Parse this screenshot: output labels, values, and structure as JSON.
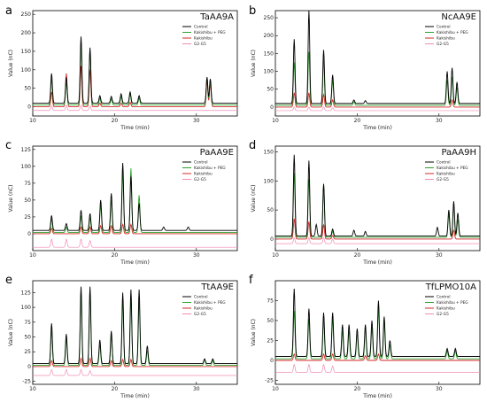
{
  "colors": {
    "control": "#000000",
    "peg": "#2ca02c",
    "kakishibu": "#d62728",
    "g2g5": "#f08cb4"
  },
  "legend": [
    "Control",
    "Kakishibu + PEG",
    "Kakishibu",
    "G2-G5"
  ],
  "chart_data": [
    {
      "letter": "a",
      "title": "TaAA9A",
      "type": "line",
      "xlabel": "Time (min)",
      "ylabel": "Value (nC)",
      "xlim": [
        10,
        35
      ],
      "ylim": [
        -25,
        260
      ],
      "xticks": [
        10,
        20,
        30
      ],
      "yticks": [
        0,
        50,
        100,
        150,
        200,
        250
      ],
      "series": [
        {
          "name": "Control",
          "offset": 10,
          "peaks": [
            [
              12.3,
              80
            ],
            [
              14.1,
              70
            ],
            [
              15.9,
              180
            ],
            [
              17.0,
              150
            ],
            [
              18.2,
              20
            ],
            [
              19.6,
              18
            ],
            [
              20.8,
              25
            ],
            [
              21.9,
              30
            ],
            [
              23.0,
              20
            ],
            [
              31.3,
              70
            ],
            [
              31.7,
              65
            ]
          ]
        },
        {
          "name": "Kakishibu + PEG",
          "offset": 5,
          "peaks": [
            [
              12.3,
              70
            ],
            [
              14.1,
              60
            ],
            [
              15.9,
              170
            ],
            [
              17.0,
              145
            ],
            [
              18.2,
              18
            ],
            [
              19.6,
              16
            ],
            [
              20.8,
              22
            ],
            [
              21.9,
              30
            ],
            [
              23.0,
              18
            ],
            [
              31.3,
              75
            ],
            [
              31.7,
              70
            ]
          ]
        },
        {
          "name": "Kakishibu",
          "offset": 0,
          "peaks": [
            [
              12.3,
              40
            ],
            [
              14.1,
              90
            ],
            [
              15.9,
              110
            ],
            [
              17.0,
              100
            ],
            [
              18.2,
              10
            ],
            [
              20.8,
              10
            ],
            [
              21.9,
              12
            ],
            [
              31.3,
              70
            ],
            [
              31.7,
              65
            ]
          ]
        },
        {
          "name": "G2-G5",
          "offset": -10,
          "peaks": [
            [
              12.3,
              12
            ],
            [
              14.1,
              14
            ],
            [
              15.9,
              14
            ],
            [
              17.0,
              12
            ]
          ]
        }
      ]
    },
    {
      "letter": "b",
      "title": "NcAA9E",
      "type": "line",
      "xlabel": "Time (min)",
      "ylabel": "Value (nC)",
      "xlim": [
        10,
        35
      ],
      "ylim": [
        -25,
        270
      ],
      "xticks": [
        10,
        20,
        30
      ],
      "yticks": [
        0,
        50,
        100,
        150,
        200,
        250
      ],
      "series": [
        {
          "name": "Control",
          "offset": 10,
          "peaks": [
            [
              12.3,
              180
            ],
            [
              14.1,
              260
            ],
            [
              15.9,
              150
            ],
            [
              17.0,
              80
            ],
            [
              19.6,
              10
            ],
            [
              21.0,
              8
            ],
            [
              31.0,
              90
            ],
            [
              31.6,
              100
            ],
            [
              32.2,
              60
            ]
          ]
        },
        {
          "name": "Kakishibu + PEG",
          "offset": 5,
          "peaks": [
            [
              12.3,
              120
            ],
            [
              14.1,
              150
            ],
            [
              15.9,
              130
            ],
            [
              17.0,
              70
            ],
            [
              19.6,
              10
            ],
            [
              31.0,
              70
            ],
            [
              31.6,
              80
            ],
            [
              32.2,
              50
            ]
          ]
        },
        {
          "name": "Kakishibu",
          "offset": 0,
          "peaks": [
            [
              12.3,
              40
            ],
            [
              14.1,
              40
            ],
            [
              15.9,
              35
            ],
            [
              17.0,
              20
            ],
            [
              31.6,
              20
            ]
          ]
        },
        {
          "name": "G2-G5",
          "offset": -10,
          "peaks": [
            [
              12.3,
              10
            ],
            [
              14.1,
              10
            ],
            [
              15.9,
              10
            ],
            [
              17.0,
              8
            ]
          ]
        }
      ]
    },
    {
      "letter": "c",
      "title": "PaAA9E",
      "type": "line",
      "xlabel": "Time (min)",
      "ylabel": "Value (nC)",
      "xlim": [
        10,
        35
      ],
      "ylim": [
        -25,
        130
      ],
      "xticks": [
        10,
        20,
        30
      ],
      "yticks": [
        0,
        25,
        50,
        75,
        100,
        125
      ],
      "series": [
        {
          "name": "Control",
          "offset": 5,
          "peaks": [
            [
              12.3,
              22
            ],
            [
              14.1,
              10
            ],
            [
              15.9,
              30
            ],
            [
              17.0,
              25
            ],
            [
              18.3,
              45
            ],
            [
              19.6,
              55
            ],
            [
              21.0,
              100
            ],
            [
              22.0,
              80
            ],
            [
              23.0,
              40
            ],
            [
              26.0,
              5
            ],
            [
              29.0,
              5
            ]
          ]
        },
        {
          "name": "Kakishibu + PEG",
          "offset": 2,
          "peaks": [
            [
              12.3,
              20
            ],
            [
              14.1,
              8
            ],
            [
              15.9,
              25
            ],
            [
              17.0,
              22
            ],
            [
              18.3,
              40
            ],
            [
              19.6,
              48
            ],
            [
              21.0,
              90
            ],
            [
              22.0,
              95
            ],
            [
              23.0,
              55
            ]
          ]
        },
        {
          "name": "Kakishibu",
          "offset": 0,
          "peaks": [
            [
              12.3,
              8
            ],
            [
              15.9,
              10
            ],
            [
              17.0,
              10
            ],
            [
              18.3,
              12
            ],
            [
              19.6,
              12
            ],
            [
              21.0,
              14
            ],
            [
              22.0,
              14
            ]
          ]
        },
        {
          "name": "G2-G5",
          "offset": -20,
          "peaks": [
            [
              12.3,
              12
            ],
            [
              14.1,
              12
            ],
            [
              15.9,
              12
            ],
            [
              17.0,
              10
            ]
          ]
        }
      ]
    },
    {
      "letter": "d",
      "title": "PaAA9H",
      "type": "line",
      "xlabel": "Time (min)",
      "ylabel": "Value (nC)",
      "xlim": [
        10,
        35
      ],
      "ylim": [
        -20,
        160
      ],
      "xticks": [
        10,
        20,
        30
      ],
      "yticks": [
        0,
        50,
        100,
        150
      ],
      "series": [
        {
          "name": "Control",
          "offset": 5,
          "peaks": [
            [
              12.3,
              140
            ],
            [
              14.1,
              130
            ],
            [
              15.0,
              20
            ],
            [
              15.9,
              90
            ],
            [
              17.0,
              12
            ],
            [
              19.6,
              10
            ],
            [
              21.0,
              8
            ],
            [
              29.8,
              15
            ],
            [
              31.2,
              45
            ],
            [
              31.8,
              60
            ],
            [
              32.3,
              40
            ]
          ]
        },
        {
          "name": "Kakishibu + PEG",
          "offset": 3,
          "peaks": [
            [
              12.3,
              110
            ],
            [
              14.1,
              100
            ],
            [
              15.9,
              92
            ],
            [
              17.0,
              10
            ],
            [
              31.2,
              40
            ],
            [
              31.8,
              55
            ],
            [
              32.3,
              30
            ]
          ]
        },
        {
          "name": "Kakishibu",
          "offset": 0,
          "peaks": [
            [
              12.3,
              35
            ],
            [
              14.1,
              30
            ],
            [
              15.9,
              25
            ],
            [
              17.0,
              6
            ],
            [
              31.8,
              15
            ]
          ]
        },
        {
          "name": "G2-G5",
          "offset": -8,
          "peaks": [
            [
              12.3,
              10
            ],
            [
              14.1,
              10
            ],
            [
              15.9,
              10
            ],
            [
              17.0,
              8
            ]
          ]
        }
      ]
    },
    {
      "letter": "e",
      "title": "TtAA9E",
      "type": "line",
      "xlabel": "Time (min)",
      "ylabel": "Value (nC)",
      "xlim": [
        10,
        35
      ],
      "ylim": [
        -30,
        145
      ],
      "xticks": [
        10,
        20,
        30
      ],
      "yticks": [
        -25,
        0,
        25,
        50,
        75,
        100,
        125
      ],
      "series": [
        {
          "name": "Control",
          "offset": 5,
          "peaks": [
            [
              12.3,
              68
            ],
            [
              14.1,
              50
            ],
            [
              15.9,
              130
            ],
            [
              17.0,
              130
            ],
            [
              18.2,
              40
            ],
            [
              19.6,
              55
            ],
            [
              21.0,
              120
            ],
            [
              22.0,
              125
            ],
            [
              23.0,
              125
            ],
            [
              24.0,
              30
            ],
            [
              31.0,
              8
            ],
            [
              32.0,
              8
            ]
          ]
        },
        {
          "name": "Kakishibu + PEG",
          "offset": 2,
          "peaks": [
            [
              12.3,
              60
            ],
            [
              14.1,
              45
            ],
            [
              15.9,
              120
            ],
            [
              17.0,
              120
            ],
            [
              18.2,
              35
            ],
            [
              19.6,
              50
            ],
            [
              21.0,
              110
            ],
            [
              22.0,
              115
            ],
            [
              23.0,
              110
            ],
            [
              24.0,
              25
            ],
            [
              31.0,
              10
            ],
            [
              32.0,
              8
            ]
          ]
        },
        {
          "name": "Kakishibu",
          "offset": 0,
          "peaks": [
            [
              12.3,
              10
            ],
            [
              15.9,
              14
            ],
            [
              17.0,
              14
            ],
            [
              19.6,
              10
            ],
            [
              21.0,
              12
            ],
            [
              22.0,
              12
            ]
          ]
        },
        {
          "name": "G2-G5",
          "offset": -15,
          "peaks": [
            [
              12.3,
              10
            ],
            [
              14.1,
              10
            ],
            [
              15.9,
              10
            ],
            [
              17.0,
              8
            ]
          ]
        }
      ]
    },
    {
      "letter": "f",
      "title": "TfLPMO10A",
      "type": "line",
      "xlabel": "Time (min)",
      "ylabel": "Value (nC)",
      "xlim": [
        10,
        35
      ],
      "ylim": [
        -30,
        100
      ],
      "xticks": [
        10,
        20,
        30
      ],
      "yticks": [
        -25,
        0,
        25,
        50,
        75
      ],
      "series": [
        {
          "name": "Control",
          "offset": 5,
          "peaks": [
            [
              12.3,
              85
            ],
            [
              14.1,
              60
            ],
            [
              15.9,
              55
            ],
            [
              17.0,
              55
            ],
            [
              18.2,
              40
            ],
            [
              19.0,
              40
            ],
            [
              20.0,
              35
            ],
            [
              21.0,
              40
            ],
            [
              21.8,
              45
            ],
            [
              22.6,
              70
            ],
            [
              23.3,
              50
            ],
            [
              24.0,
              20
            ],
            [
              31.0,
              10
            ],
            [
              32.0,
              10
            ]
          ]
        },
        {
          "name": "Kakishibu + PEG",
          "offset": 2,
          "peaks": [
            [
              12.3,
              60
            ],
            [
              14.1,
              50
            ],
            [
              15.9,
              50
            ],
            [
              17.0,
              50
            ],
            [
              18.2,
              35
            ],
            [
              19.0,
              35
            ],
            [
              20.0,
              32
            ],
            [
              21.0,
              38
            ],
            [
              21.8,
              40
            ],
            [
              22.6,
              65
            ],
            [
              23.3,
              48
            ],
            [
              24.0,
              18
            ],
            [
              31.0,
              10
            ],
            [
              32.0,
              10
            ]
          ]
        },
        {
          "name": "Kakishibu",
          "offset": 0,
          "peaks": [
            [
              12.3,
              8
            ],
            [
              15.9,
              8
            ],
            [
              17.0,
              8
            ],
            [
              21.0,
              6
            ],
            [
              22.6,
              8
            ]
          ]
        },
        {
          "name": "G2-G5",
          "offset": -15,
          "peaks": [
            [
              12.3,
              10
            ],
            [
              14.1,
              10
            ],
            [
              15.9,
              10
            ],
            [
              17.0,
              8
            ]
          ]
        }
      ]
    }
  ]
}
